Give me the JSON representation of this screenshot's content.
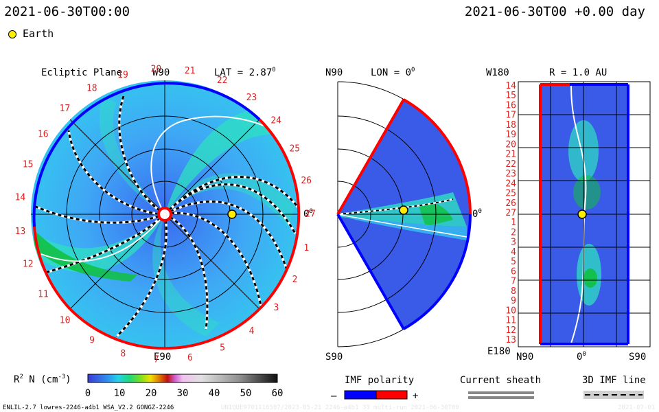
{
  "header": {
    "left_time": "2021-06-30T00:00",
    "right_time": "2021-06-30T00 +0.00 day"
  },
  "legend": {
    "earth_label": "Earth"
  },
  "ecliptic": {
    "title": "Ecliptic Plane",
    "lat_label": "LAT = 2.87",
    "deg": "0",
    "top_label": "W90",
    "bottom_label": "E90",
    "right_label": "0",
    "right_deg": "0",
    "carrington_ticks": [
      "1",
      "2",
      "3",
      "4",
      "5",
      "6",
      "7",
      "8",
      "9",
      "10",
      "11",
      "12",
      "13",
      "14",
      "15",
      "16",
      "17",
      "18",
      "19",
      "20",
      "21",
      "22",
      "23",
      "24",
      "25",
      "26",
      "27"
    ]
  },
  "meridional": {
    "top_label": "N90",
    "lon_label": "LON = 0",
    "lon_deg": "0",
    "bottom_label": "S90",
    "right_label": "0",
    "right_deg": "0"
  },
  "radial": {
    "top_left_label": "W180",
    "r_label": "R = 1.0 AU",
    "bottom_left_label": "E180",
    "bottom_axis": [
      "N90",
      "0",
      "S90"
    ],
    "bottom_mid_deg": "0",
    "rows": [
      "14",
      "15",
      "16",
      "17",
      "18",
      "19",
      "20",
      "21",
      "22",
      "23",
      "24",
      "25",
      "26",
      "27",
      "1",
      "2",
      "3",
      "4",
      "5",
      "6",
      "7",
      "8",
      "9",
      "10",
      "11",
      "12",
      "13"
    ]
  },
  "colorbar": {
    "label_prefix": "R",
    "label_sup": "2",
    "label_main": " N (cm",
    "label_exp": "-3",
    "label_end": ")",
    "ticks": [
      "0",
      "10",
      "20",
      "30",
      "40",
      "50",
      "60"
    ]
  },
  "imf": {
    "title": "IMF polarity",
    "minus": "–",
    "plus": "+"
  },
  "sheath": {
    "title": "Current sheath"
  },
  "imf3d": {
    "title": "3D IMF line"
  },
  "footer": {
    "left": "ENLIL-2.7 lowres-2246-a4b1 WSA_V2.2 GONGZ-2246",
    "mid": "UNIQUE9701116507/2023-05-21 2246-a4b1 33 multi-run 2021-06-30T00",
    "right": "2021-07-01"
  },
  "colors": {
    "blue_polarity": "#0000ff",
    "red_polarity": "#ff0000",
    "earth": "#ffee00"
  }
}
